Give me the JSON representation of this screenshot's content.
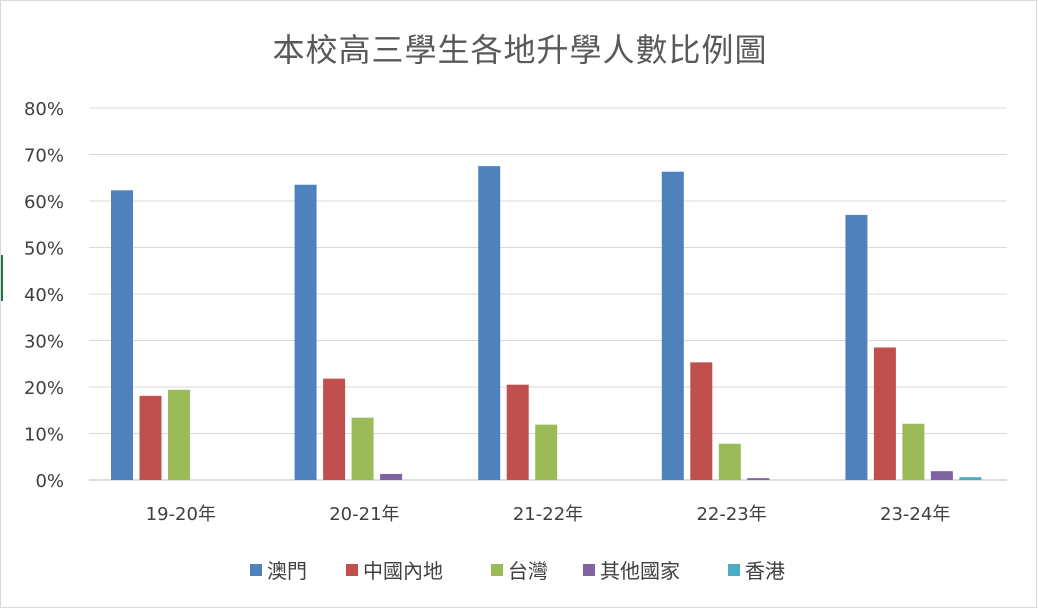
{
  "chart_data": {
    "type": "bar",
    "title": "本校高三學生各地升學人數比例圖",
    "categories": [
      "19-20年",
      "20-21年",
      "21-22年",
      "22-23年",
      "23-24年"
    ],
    "series": [
      {
        "name": "澳門",
        "color": "#4F81BD",
        "values": [
          62.3,
          63.5,
          67.5,
          66.3,
          57.0
        ]
      },
      {
        "name": "中國內地",
        "color": "#C0504D",
        "values": [
          18.1,
          21.8,
          20.5,
          25.3,
          28.5
        ]
      },
      {
        "name": "台灣",
        "color": "#9BBB59",
        "values": [
          19.4,
          13.4,
          11.9,
          7.8,
          12.1
        ]
      },
      {
        "name": "其他國家",
        "color": "#8064A2",
        "values": [
          0.0,
          1.3,
          0.0,
          0.4,
          1.9
        ]
      },
      {
        "name": "香港",
        "color": "#4BACC6",
        "values": [
          0.0,
          0.0,
          0.0,
          0.0,
          0.6
        ]
      }
    ],
    "ylim": [
      0,
      80
    ],
    "yticks": [
      "0%",
      "10%",
      "20%",
      "30%",
      "40%",
      "50%",
      "60%",
      "70%",
      "80%"
    ],
    "grid": true,
    "legend_position": "bottom"
  }
}
